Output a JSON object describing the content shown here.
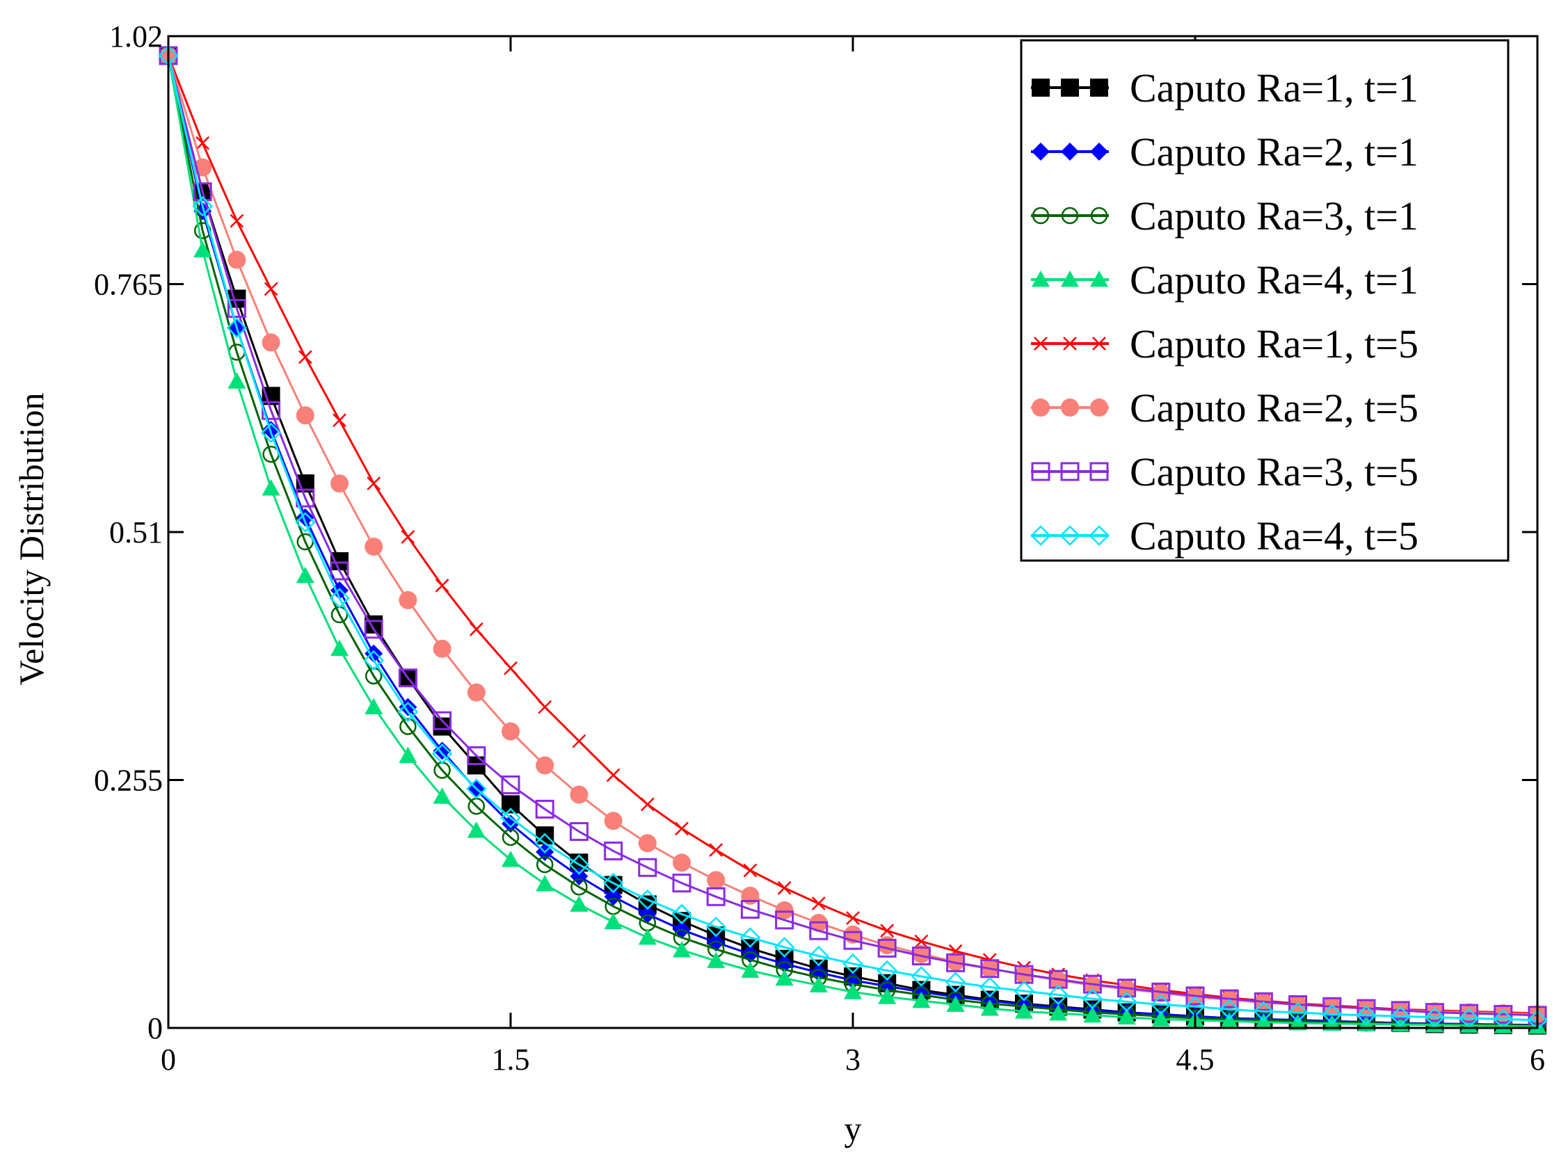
{
  "chart_data": {
    "type": "line",
    "title": "",
    "xlabel": "y",
    "ylabel": "Velocity Distribution",
    "xlim": [
      0,
      6
    ],
    "ylim": [
      0,
      1.02
    ],
    "xticks": [
      0,
      1.5,
      3,
      4.5,
      6
    ],
    "xtick_labels": [
      "0",
      "1.5",
      "3",
      "4.5",
      "6"
    ],
    "yticks": [
      0,
      0.255,
      0.51,
      0.765,
      1.02
    ],
    "ytick_labels": [
      "0",
      "0.255",
      "0.51",
      "0.765",
      "1.02"
    ],
    "grid": false,
    "legend_position": "top-right",
    "x": [
      0,
      0.15,
      0.3,
      0.45,
      0.6,
      0.75,
      0.9,
      1.05,
      1.2,
      1.35,
      1.5,
      1.65,
      1.8,
      1.95,
      2.1,
      2.25,
      2.4,
      2.55,
      2.7,
      2.85,
      3.0,
      3.15,
      3.3,
      3.45,
      3.6,
      3.75,
      3.9,
      4.05,
      4.2,
      4.35,
      4.5,
      4.65,
      4.8,
      4.95,
      5.1,
      5.25,
      5.4,
      5.55,
      5.7,
      5.85,
      6.0
    ],
    "series": [
      {
        "name": "Caputo Ra=1, t=1",
        "color": "#000000",
        "marker": "square-filled",
        "values": [
          1.0,
          0.86,
          0.75,
          0.65,
          0.56,
          0.48,
          0.415,
          0.36,
          0.31,
          0.27,
          0.23,
          0.198,
          0.17,
          0.147,
          0.127,
          0.11,
          0.095,
          0.082,
          0.071,
          0.061,
          0.053,
          0.046,
          0.039,
          0.034,
          0.029,
          0.025,
          0.022,
          0.019,
          0.016,
          0.014,
          0.012,
          0.01,
          0.009,
          0.008,
          0.007,
          0.006,
          0.005,
          0.004,
          0.0035,
          0.003,
          0.0025
        ]
      },
      {
        "name": "Caputo Ra=2, t=1",
        "color": "#0000ff",
        "marker": "diamond-filled",
        "values": [
          1.0,
          0.84,
          0.72,
          0.615,
          0.525,
          0.45,
          0.385,
          0.33,
          0.285,
          0.245,
          0.21,
          0.181,
          0.156,
          0.135,
          0.117,
          0.101,
          0.088,
          0.076,
          0.066,
          0.057,
          0.049,
          0.043,
          0.037,
          0.032,
          0.028,
          0.024,
          0.021,
          0.018,
          0.016,
          0.014,
          0.012,
          0.01,
          0.009,
          0.008,
          0.007,
          0.006,
          0.005,
          0.0045,
          0.004,
          0.0035,
          0.003
        ]
      },
      {
        "name": "Caputo Ra=3, t=1",
        "color": "#006400",
        "marker": "circle-open",
        "values": [
          1.0,
          0.82,
          0.695,
          0.59,
          0.5,
          0.425,
          0.362,
          0.31,
          0.265,
          0.228,
          0.196,
          0.168,
          0.145,
          0.125,
          0.108,
          0.093,
          0.081,
          0.07,
          0.06,
          0.052,
          0.045,
          0.039,
          0.034,
          0.029,
          0.025,
          0.022,
          0.019,
          0.016,
          0.014,
          0.012,
          0.01,
          0.009,
          0.008,
          0.007,
          0.006,
          0.005,
          0.0045,
          0.004,
          0.0035,
          0.003,
          0.0025
        ]
      },
      {
        "name": "Caputo Ra=4, t=1",
        "color": "#00e07a",
        "marker": "triangle-filled",
        "values": [
          1.0,
          0.8,
          0.665,
          0.555,
          0.465,
          0.39,
          0.33,
          0.28,
          0.238,
          0.203,
          0.173,
          0.148,
          0.127,
          0.109,
          0.093,
          0.08,
          0.069,
          0.059,
          0.051,
          0.044,
          0.037,
          0.032,
          0.028,
          0.024,
          0.02,
          0.017,
          0.015,
          0.013,
          0.011,
          0.009,
          0.008,
          0.007,
          0.006,
          0.005,
          0.0045,
          0.004,
          0.0035,
          0.003,
          0.0025,
          0.002,
          0.0015
        ]
      },
      {
        "name": "Caputo Ra=1, t=5",
        "color": "#ff0000",
        "marker": "cross",
        "values": [
          1.0,
          0.91,
          0.83,
          0.76,
          0.69,
          0.625,
          0.56,
          0.505,
          0.455,
          0.41,
          0.37,
          0.33,
          0.295,
          0.26,
          0.23,
          0.205,
          0.183,
          0.162,
          0.144,
          0.128,
          0.113,
          0.1,
          0.089,
          0.079,
          0.07,
          0.062,
          0.055,
          0.049,
          0.044,
          0.039,
          0.035,
          0.031,
          0.028,
          0.025,
          0.023,
          0.021,
          0.019,
          0.018,
          0.017,
          0.016,
          0.015
        ]
      },
      {
        "name": "Caputo Ra=2, t=5",
        "color": "#f88078",
        "marker": "circle-filled",
        "values": [
          1.0,
          0.885,
          0.79,
          0.705,
          0.63,
          0.56,
          0.495,
          0.44,
          0.39,
          0.345,
          0.305,
          0.27,
          0.24,
          0.213,
          0.19,
          0.17,
          0.152,
          0.136,
          0.121,
          0.108,
          0.096,
          0.085,
          0.076,
          0.068,
          0.061,
          0.055,
          0.049,
          0.044,
          0.04,
          0.036,
          0.032,
          0.029,
          0.026,
          0.024,
          0.022,
          0.02,
          0.018,
          0.017,
          0.016,
          0.015,
          0.014
        ]
      },
      {
        "name": "Caputo Ra=3, t=5",
        "color": "#8a2be2",
        "marker": "square-open",
        "values": [
          1.0,
          0.86,
          0.74,
          0.635,
          0.545,
          0.47,
          0.41,
          0.36,
          0.316,
          0.28,
          0.25,
          0.225,
          0.202,
          0.182,
          0.165,
          0.149,
          0.135,
          0.122,
          0.111,
          0.1,
          0.09,
          0.082,
          0.074,
          0.067,
          0.061,
          0.055,
          0.05,
          0.045,
          0.041,
          0.037,
          0.033,
          0.03,
          0.027,
          0.024,
          0.022,
          0.02,
          0.018,
          0.016,
          0.015,
          0.014,
          0.013
        ]
      },
      {
        "name": "Caputo Ra=4, t=5",
        "color": "#00e5ff",
        "marker": "diamond-open",
        "values": [
          1.0,
          0.845,
          0.72,
          0.612,
          0.52,
          0.442,
          0.378,
          0.325,
          0.282,
          0.246,
          0.216,
          0.19,
          0.168,
          0.149,
          0.132,
          0.117,
          0.104,
          0.093,
          0.083,
          0.074,
          0.066,
          0.059,
          0.053,
          0.047,
          0.042,
          0.038,
          0.034,
          0.03,
          0.027,
          0.024,
          0.022,
          0.019,
          0.017,
          0.016,
          0.014,
          0.013,
          0.012,
          0.011,
          0.01,
          0.009,
          0.008
        ]
      }
    ]
  }
}
